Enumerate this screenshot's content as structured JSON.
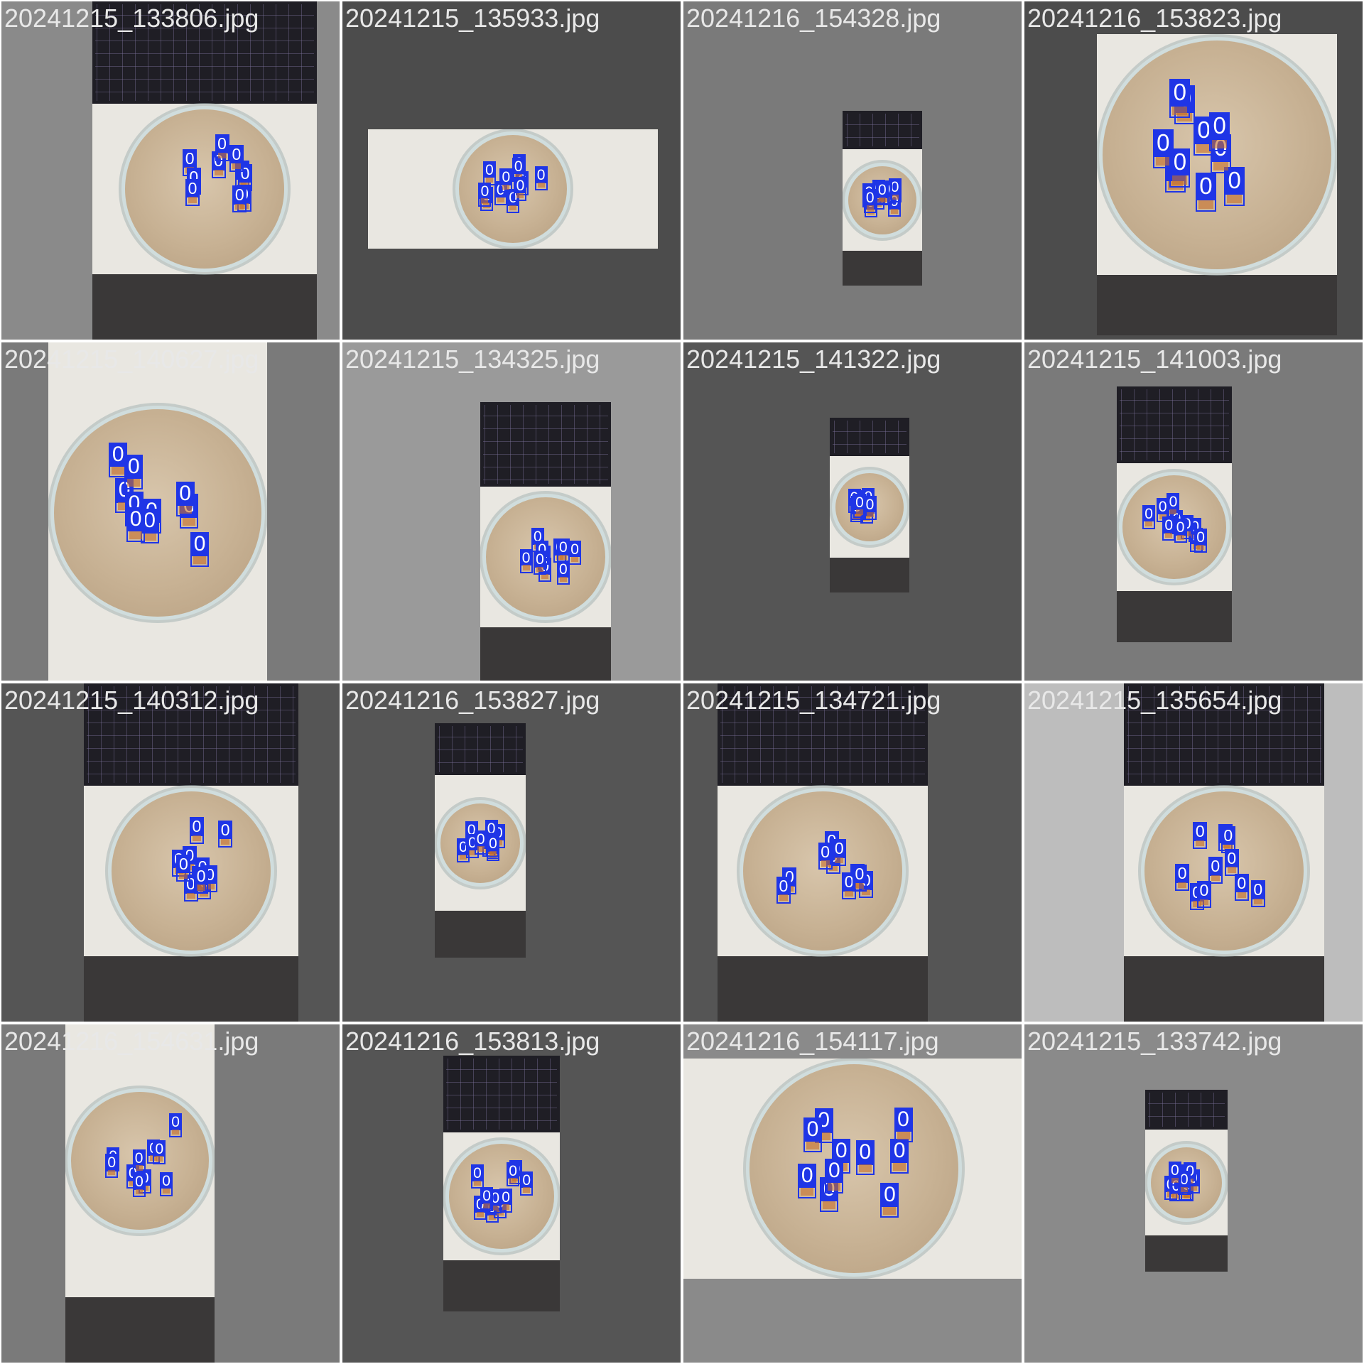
{
  "mosaic": {
    "tiles": [
      {
        "filename": "20241215_133806.jpg",
        "bg": "#8a8a8a",
        "scene": "keyboard-top",
        "boxes": 10
      },
      {
        "filename": "20241215_135933.jpg",
        "bg": "#4c4c4c",
        "scene": "landscape",
        "boxes": 11
      },
      {
        "filename": "20241216_154328.jpg",
        "bg": "#7a7a7a",
        "scene": "small",
        "boxes": 9
      },
      {
        "filename": "20241216_153823.jpg",
        "bg": "#4c4c4c",
        "scene": "dish-top",
        "boxes": 10
      },
      {
        "filename": "20241215_140627.jpg",
        "bg": "#7a7a7a",
        "scene": "dish-fill",
        "boxes": 10
      },
      {
        "filename": "20241215_134325.jpg",
        "bg": "#9a9a9a",
        "scene": "keyboard-top",
        "boxes": 10
      },
      {
        "filename": "20241215_141322.jpg",
        "bg": "#555555",
        "scene": "small",
        "boxes": 10
      },
      {
        "filename": "20241215_141003.jpg",
        "bg": "#7a7a7a",
        "scene": "keyboard-top",
        "boxes": 10
      },
      {
        "filename": "20241215_140312.jpg",
        "bg": "#555555",
        "scene": "keyboard-top",
        "boxes": 11
      },
      {
        "filename": "20241216_153827.jpg",
        "bg": "#555555",
        "scene": "small",
        "boxes": 10
      },
      {
        "filename": "20241215_134721.jpg",
        "bg": "#555555",
        "scene": "keyboard-top",
        "boxes": 10
      },
      {
        "filename": "20241215_135654.jpg",
        "bg": "#bdbdbd",
        "scene": "keyboard-top",
        "boxes": 10
      },
      {
        "filename": "20241216_154631.jpg",
        "bg": "#7a7a7a",
        "scene": "dish-top",
        "boxes": 10
      },
      {
        "filename": "20241216_153813.jpg",
        "bg": "#555555",
        "scene": "keyboard-top",
        "boxes": 10
      },
      {
        "filename": "20241216_154117.jpg",
        "bg": "#8a8a8a",
        "scene": "dish-fill",
        "boxes": 10
      },
      {
        "filename": "20241215_133742.jpg",
        "bg": "#8a8a8a",
        "scene": "small",
        "boxes": 10
      }
    ],
    "box_label": "0",
    "colors": {
      "box": "#1f35e6",
      "title": "#e8e8e8"
    }
  }
}
